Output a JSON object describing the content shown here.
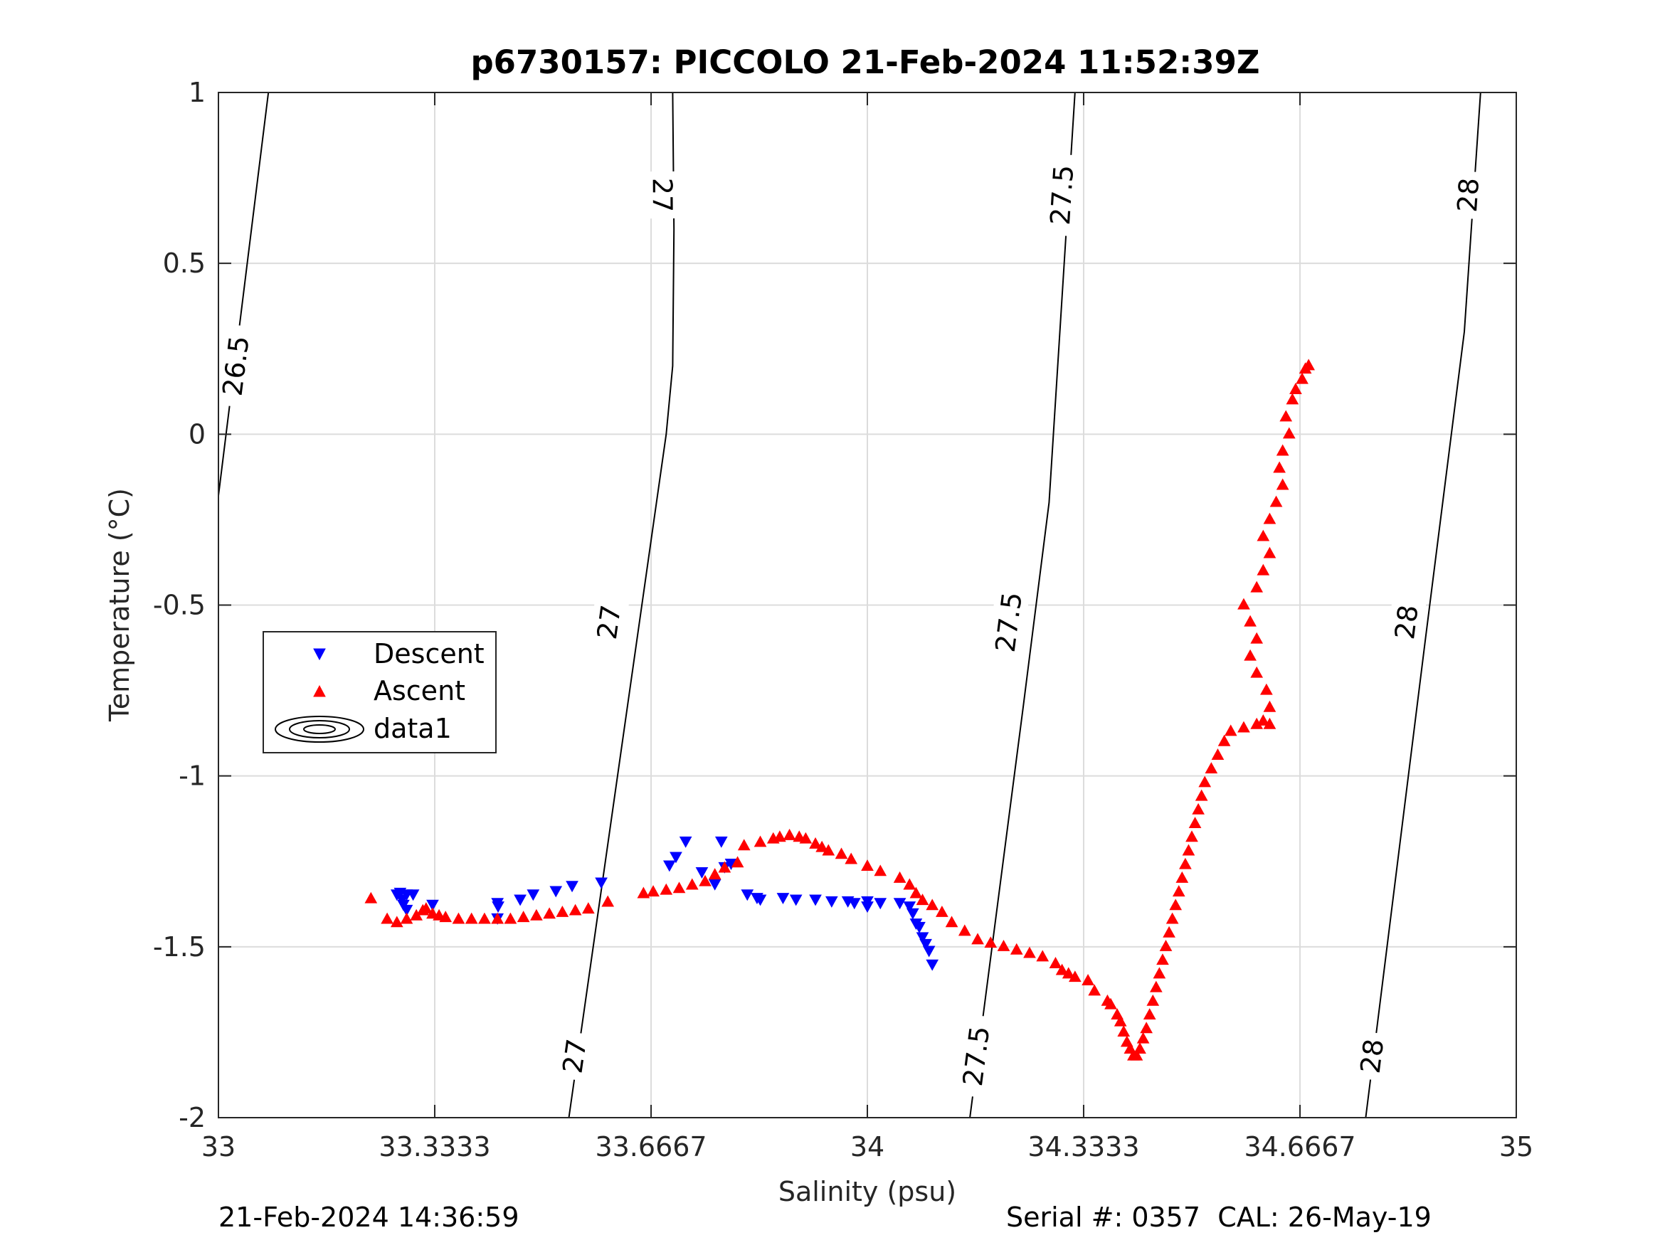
{
  "footer": {
    "timestamp": "21-Feb-2024 14:36:59",
    "serial": "Serial #: 0357  CAL: 26-May-19"
  },
  "chart_data": {
    "type": "scatter",
    "title": "p6730157: PICCOLO 21-Feb-2024 11:52:39Z",
    "xlabel": "Salinity (psu)",
    "ylabel": "Temperature (°C)",
    "xlim": [
      33,
      35
    ],
    "ylim": [
      -2,
      1
    ],
    "x_ticks": [
      33,
      33.3333,
      33.6667,
      34,
      34.3333,
      34.6667,
      35
    ],
    "x_tick_labels": [
      "33",
      "33.3333",
      "33.6667",
      "34",
      "34.3333",
      "34.6667",
      "35"
    ],
    "y_ticks": [
      -2,
      -1.5,
      -1,
      -0.5,
      0,
      0.5,
      1
    ],
    "y_tick_labels": [
      "-2",
      "-1.5",
      "-1",
      "-0.5",
      "0",
      "0.5",
      "1"
    ],
    "grid": true,
    "legend_position": "left",
    "legend": [
      {
        "name": "Descent",
        "marker": "triangle-down",
        "color": "#0000ff"
      },
      {
        "name": "Ascent",
        "marker": "triangle-up",
        "color": "#ff0000"
      },
      {
        "name": "data1",
        "marker": "contour",
        "color": "#000000"
      }
    ],
    "isopycnals": [
      {
        "sigma": 26.5,
        "points": [
          [
            33.0,
            -0.18
          ],
          [
            33.077,
            1.0
          ]
        ],
        "labels": [
          {
            "text": "26.5",
            "s": 33.027,
            "t": 0.2
          }
        ]
      },
      {
        "sigma": 27.0,
        "points": [
          [
            33.54,
            -2.0
          ],
          [
            33.69,
            0.0
          ],
          [
            33.7,
            0.2
          ],
          [
            33.702,
            0.6
          ],
          [
            33.7,
            1.0
          ]
        ],
        "labels": [
          {
            "text": "27",
            "s": 33.549,
            "t": -1.82
          },
          {
            "text": "27",
            "s": 33.602,
            "t": -0.55
          },
          {
            "text": "27",
            "s": 33.684,
            "t": 0.7
          }
        ]
      },
      {
        "sigma": 27.5,
        "points": [
          [
            34.158,
            -2.0
          ],
          [
            34.24,
            -0.8
          ],
          [
            34.28,
            -0.2
          ],
          [
            34.3,
            0.4
          ],
          [
            34.32,
            1.0
          ]
        ],
        "labels": [
          {
            "text": "27.5",
            "s": 34.168,
            "t": -1.82
          },
          {
            "text": "27.5",
            "s": 34.218,
            "t": -0.55
          },
          {
            "text": "27.5",
            "s": 34.3,
            "t": 0.7
          }
        ]
      },
      {
        "sigma": 28.0,
        "points": [
          [
            34.768,
            -2.0
          ],
          [
            34.86,
            -0.6
          ],
          [
            34.92,
            0.3
          ],
          [
            34.945,
            1.0
          ]
        ],
        "labels": [
          {
            "text": "28",
            "s": 34.778,
            "t": -1.82
          },
          {
            "text": "28",
            "s": 34.831,
            "t": -0.55
          },
          {
            "text": "28",
            "s": 34.926,
            "t": 0.7
          }
        ]
      }
    ],
    "series": [
      {
        "name": "Descent",
        "marker": "triangle-down",
        "color": "#0000ff",
        "points": [
          [
            33.275,
            -1.345
          ],
          [
            33.29,
            -1.345
          ],
          [
            33.283,
            -1.36
          ],
          [
            33.285,
            -1.375
          ],
          [
            33.3,
            -1.345
          ],
          [
            33.28,
            -1.34
          ],
          [
            33.29,
            -1.39
          ],
          [
            33.33,
            -1.375
          ],
          [
            33.43,
            -1.415
          ],
          [
            33.43,
            -1.37
          ],
          [
            33.431,
            -1.38
          ],
          [
            33.465,
            -1.36
          ],
          [
            33.485,
            -1.345
          ],
          [
            33.52,
            -1.335
          ],
          [
            33.545,
            -1.32
          ],
          [
            33.59,
            -1.31
          ],
          [
            33.695,
            -1.26
          ],
          [
            33.705,
            -1.235
          ],
          [
            33.72,
            -1.19
          ],
          [
            33.745,
            -1.28
          ],
          [
            33.765,
            -1.315
          ],
          [
            33.78,
            -1.265
          ],
          [
            33.775,
            -1.19
          ],
          [
            33.79,
            -1.255
          ],
          [
            33.815,
            -1.345
          ],
          [
            33.83,
            -1.355
          ],
          [
            33.835,
            -1.36
          ],
          [
            33.87,
            -1.355
          ],
          [
            33.89,
            -1.36
          ],
          [
            33.92,
            -1.36
          ],
          [
            33.945,
            -1.365
          ],
          [
            33.97,
            -1.365
          ],
          [
            33.98,
            -1.37
          ],
          [
            34.0,
            -1.365
          ],
          [
            34.0,
            -1.38
          ],
          [
            34.02,
            -1.37
          ],
          [
            34.05,
            -1.37
          ],
          [
            34.065,
            -1.38
          ],
          [
            34.07,
            -1.4
          ],
          [
            34.075,
            -1.43
          ],
          [
            34.08,
            -1.44
          ],
          [
            34.085,
            -1.47
          ],
          [
            34.09,
            -1.49
          ],
          [
            34.095,
            -1.51
          ],
          [
            34.1,
            -1.55
          ]
        ]
      },
      {
        "name": "Ascent",
        "marker": "triangle-up",
        "color": "#ff0000",
        "points": [
          [
            33.235,
            -1.36
          ],
          [
            33.26,
            -1.42
          ],
          [
            33.275,
            -1.43
          ],
          [
            33.29,
            -1.42
          ],
          [
            33.305,
            -1.41
          ],
          [
            33.315,
            -1.395
          ],
          [
            33.32,
            -1.39
          ],
          [
            33.33,
            -1.405
          ],
          [
            33.34,
            -1.41
          ],
          [
            33.35,
            -1.415
          ],
          [
            33.37,
            -1.42
          ],
          [
            33.39,
            -1.42
          ],
          [
            33.41,
            -1.42
          ],
          [
            33.43,
            -1.42
          ],
          [
            33.45,
            -1.42
          ],
          [
            33.47,
            -1.415
          ],
          [
            33.49,
            -1.41
          ],
          [
            33.51,
            -1.405
          ],
          [
            33.53,
            -1.4
          ],
          [
            33.55,
            -1.395
          ],
          [
            33.57,
            -1.39
          ],
          [
            33.6,
            -1.37
          ],
          [
            33.655,
            -1.345
          ],
          [
            33.67,
            -1.34
          ],
          [
            33.69,
            -1.335
          ],
          [
            33.71,
            -1.33
          ],
          [
            33.73,
            -1.32
          ],
          [
            33.75,
            -1.31
          ],
          [
            33.765,
            -1.29
          ],
          [
            33.78,
            -1.27
          ],
          [
            33.8,
            -1.255
          ],
          [
            33.81,
            -1.205
          ],
          [
            33.835,
            -1.195
          ],
          [
            33.855,
            -1.185
          ],
          [
            33.865,
            -1.18
          ],
          [
            33.88,
            -1.175
          ],
          [
            33.895,
            -1.18
          ],
          [
            33.905,
            -1.185
          ],
          [
            33.92,
            -1.2
          ],
          [
            33.93,
            -1.21
          ],
          [
            33.94,
            -1.22
          ],
          [
            33.96,
            -1.23
          ],
          [
            33.975,
            -1.245
          ],
          [
            34.0,
            -1.265
          ],
          [
            34.02,
            -1.28
          ],
          [
            34.05,
            -1.3
          ],
          [
            34.065,
            -1.32
          ],
          [
            34.075,
            -1.345
          ],
          [
            34.085,
            -1.365
          ],
          [
            34.1,
            -1.38
          ],
          [
            34.115,
            -1.4
          ],
          [
            34.13,
            -1.43
          ],
          [
            34.15,
            -1.455
          ],
          [
            34.17,
            -1.48
          ],
          [
            34.19,
            -1.49
          ],
          [
            34.21,
            -1.5
          ],
          [
            34.23,
            -1.51
          ],
          [
            34.25,
            -1.52
          ],
          [
            34.27,
            -1.53
          ],
          [
            34.29,
            -1.55
          ],
          [
            34.3,
            -1.57
          ],
          [
            34.31,
            -1.58
          ],
          [
            34.32,
            -1.59
          ],
          [
            34.34,
            -1.6
          ],
          [
            34.35,
            -1.63
          ],
          [
            34.37,
            -1.66
          ],
          [
            34.375,
            -1.67
          ],
          [
            34.385,
            -1.7
          ],
          [
            34.39,
            -1.72
          ],
          [
            34.395,
            -1.75
          ],
          [
            34.4,
            -1.78
          ],
          [
            34.405,
            -1.8
          ],
          [
            34.41,
            -1.82
          ],
          [
            34.415,
            -1.82
          ],
          [
            34.42,
            -1.8
          ],
          [
            34.425,
            -1.77
          ],
          [
            34.43,
            -1.74
          ],
          [
            34.435,
            -1.7
          ],
          [
            34.44,
            -1.66
          ],
          [
            34.445,
            -1.62
          ],
          [
            34.45,
            -1.58
          ],
          [
            34.455,
            -1.54
          ],
          [
            34.46,
            -1.5
          ],
          [
            34.465,
            -1.46
          ],
          [
            34.47,
            -1.42
          ],
          [
            34.475,
            -1.38
          ],
          [
            34.48,
            -1.34
          ],
          [
            34.485,
            -1.3
          ],
          [
            34.49,
            -1.26
          ],
          [
            34.495,
            -1.22
          ],
          [
            34.5,
            -1.18
          ],
          [
            34.505,
            -1.14
          ],
          [
            34.51,
            -1.1
          ],
          [
            34.515,
            -1.06
          ],
          [
            34.52,
            -1.02
          ],
          [
            34.53,
            -0.98
          ],
          [
            34.54,
            -0.94
          ],
          [
            34.55,
            -0.9
          ],
          [
            34.56,
            -0.87
          ],
          [
            34.58,
            -0.86
          ],
          [
            34.6,
            -0.85
          ],
          [
            34.61,
            -0.84
          ],
          [
            34.62,
            -0.85
          ],
          [
            34.62,
            -0.8
          ],
          [
            34.615,
            -0.75
          ],
          [
            34.6,
            -0.7
          ],
          [
            34.59,
            -0.65
          ],
          [
            34.6,
            -0.6
          ],
          [
            34.59,
            -0.55
          ],
          [
            34.58,
            -0.5
          ],
          [
            34.6,
            -0.45
          ],
          [
            34.61,
            -0.4
          ],
          [
            34.62,
            -0.35
          ],
          [
            34.61,
            -0.3
          ],
          [
            34.62,
            -0.25
          ],
          [
            34.63,
            -0.2
          ],
          [
            34.64,
            -0.15
          ],
          [
            34.635,
            -0.1
          ],
          [
            34.64,
            -0.05
          ],
          [
            34.65,
            0.0
          ],
          [
            34.645,
            0.05
          ],
          [
            34.655,
            0.1
          ],
          [
            34.66,
            0.13
          ],
          [
            34.67,
            0.16
          ],
          [
            34.675,
            0.19
          ],
          [
            34.68,
            0.2
          ]
        ]
      }
    ]
  }
}
